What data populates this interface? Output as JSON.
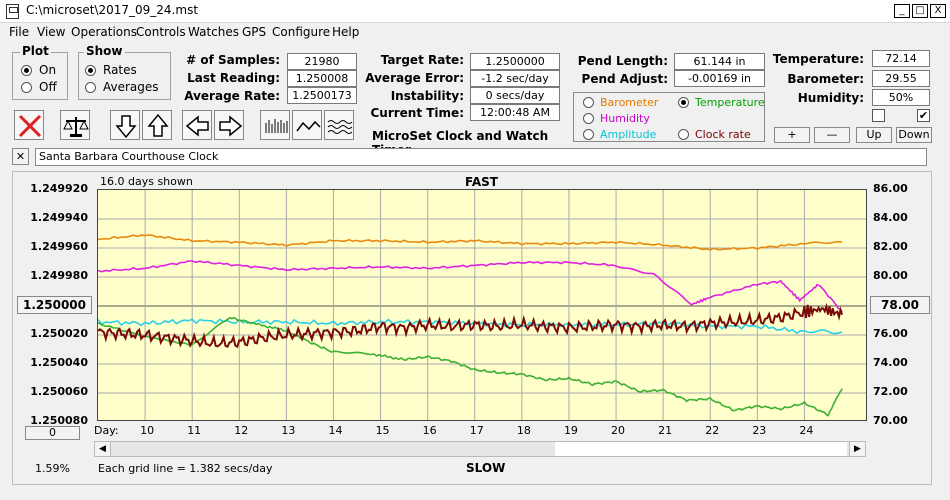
{
  "window": {
    "title": "C:\\microset\\2017_09_24.mst",
    "min": "_",
    "max": "□",
    "close": "X"
  },
  "menu": [
    "File",
    "View",
    "Operations",
    "Controls",
    "Watches",
    "GPS",
    "Configure",
    "Help"
  ],
  "plot_group": {
    "title": "Plot",
    "on": "On",
    "off": "Off",
    "selected": "On"
  },
  "show_group": {
    "title": "Show",
    "rates": "Rates",
    "averages": "Averages",
    "selected": "Rates"
  },
  "stats": {
    "samples_label": "# of Samples:",
    "samples": "21980",
    "last_label": "Last Reading:",
    "last": "1.250008",
    "avg_label": "Average Rate:",
    "avg": "1.2500173",
    "target_label": "Target Rate:",
    "target": "1.2500000",
    "error_label": "Average Error:",
    "error": "-1.2 sec/day",
    "instab_label": "Instability:",
    "instab": "0 secs/day",
    "time_label": "Current Time:",
    "time": "12:00:48 AM",
    "pendlen_label": "Pend Length:",
    "pendlen": "61.144 in",
    "pendadj_label": "Pend Adjust:",
    "pendadj": "-0.00169 in",
    "temp_label": "Temperature:",
    "temp": "72.14",
    "baro_label": "Barometer:",
    "baro": "29.55",
    "hum_label": "Humidity:",
    "hum": "50%"
  },
  "app_caption": "MicroSet Clock and Watch Timer",
  "sensor_options": [
    {
      "label": "Barometer",
      "color": "#e07b00",
      "selected": false
    },
    {
      "label": "Temperature",
      "color": "#00a000",
      "selected": true
    },
    {
      "label": "Humidity",
      "color": "#cc00cc",
      "selected": false
    },
    {
      "label": "Amplitude",
      "color": "#00c8d8",
      "selected": false
    },
    {
      "label": "Clock rate",
      "color": "#7a0000",
      "selected": false
    }
  ],
  "scale_buttons": {
    "plus": "+",
    "minus": "—",
    "up": "Up",
    "down": "Down"
  },
  "checkboxes": {
    "a": "",
    "b": "✔"
  },
  "clock_name": "Santa Barbara Courthouse Clock",
  "clear_name": "✕",
  "chart": {
    "days_shown": "16.0 days shown",
    "fast": "FAST",
    "slow": "SLOW",
    "day_label": "Day:",
    "grid_note": "Each grid line = 1.382 secs/day",
    "zoom": "1.59%",
    "left_button": "1.250000",
    "right_button": "78.00",
    "bottom_left_button": "0"
  },
  "chart_data": {
    "type": "line",
    "y_left_ticks": [
      "1.249920",
      "1.249940",
      "1.249960",
      "1.249980",
      "1.250000",
      "1.250020",
      "1.250040",
      "1.250060",
      "1.250080"
    ],
    "y_right_ticks": [
      "86.00",
      "84.00",
      "82.00",
      "80.00",
      "78.00",
      "76.00",
      "74.00",
      "72.00",
      "70.00"
    ],
    "x_ticks": [
      "10",
      "11",
      "12",
      "13",
      "14",
      "15",
      "16",
      "17",
      "18",
      "19",
      "20",
      "21",
      "22",
      "23",
      "24"
    ],
    "series": [
      {
        "name": "Barometer",
        "color": "#e88a10",
        "x": [
          9,
          10,
          11,
          12,
          13,
          14,
          15,
          16,
          17,
          18,
          19,
          20,
          21,
          22,
          23,
          24,
          24.8
        ],
        "y": [
          82.6,
          82.9,
          82.5,
          82.4,
          82.2,
          82.5,
          82.5,
          82.4,
          82.5,
          82.3,
          82.3,
          82.4,
          82.2,
          81.9,
          82.0,
          82.3,
          82.4
        ]
      },
      {
        "name": "Humidity",
        "color": "#e020e0",
        "x": [
          9,
          10,
          11,
          12,
          13,
          14,
          15,
          16,
          17,
          18,
          19,
          20,
          20.8,
          21.6,
          22,
          23,
          23.5,
          23.9,
          24.3,
          24.8
        ],
        "y": [
          80.4,
          80.6,
          81.1,
          80.8,
          80.5,
          80.6,
          80.7,
          80.6,
          80.8,
          81.0,
          81.0,
          80.8,
          80.2,
          78.1,
          78.6,
          79.5,
          79.7,
          78.4,
          79.5,
          77.6
        ]
      },
      {
        "name": "Amplitude",
        "color": "#28d0e8",
        "x": [
          9,
          10,
          11,
          12,
          13,
          14,
          15,
          16,
          17,
          18,
          19,
          20,
          21,
          22,
          23,
          24,
          24.8
        ],
        "y": [
          76.9,
          76.8,
          77.0,
          76.9,
          76.9,
          76.8,
          76.9,
          76.9,
          76.8,
          76.7,
          76.7,
          76.7,
          76.8,
          76.6,
          76.6,
          76.2,
          76.2
        ]
      },
      {
        "name": "Temperature",
        "color": "#3cb034",
        "x": [
          9,
          10,
          11,
          11.8,
          12.3,
          13,
          13.5,
          14,
          14.8,
          15.5,
          16,
          16.5,
          17,
          17.5,
          18,
          18.5,
          19,
          19.5,
          20,
          20.5,
          21,
          21.5,
          22,
          22.5,
          23,
          23.5,
          24,
          24.5,
          24.8
        ],
        "y": [
          76.8,
          75.9,
          75.3,
          77.2,
          76.8,
          76.3,
          75.5,
          74.8,
          74.7,
          74.3,
          74.5,
          74.2,
          73.6,
          73.4,
          73.3,
          72.9,
          73.0,
          72.6,
          72.8,
          72.1,
          72.2,
          71.5,
          71.6,
          70.8,
          71.1,
          70.9,
          71.3,
          70.5,
          72.3
        ]
      },
      {
        "name": "Clock rate",
        "color": "#7a0a0a",
        "x": [
          9,
          9.5,
          10,
          10.5,
          11,
          11.5,
          12,
          12.5,
          13,
          13.5,
          14,
          14.5,
          15,
          15.5,
          16,
          16.5,
          17,
          17.5,
          18,
          18.5,
          19,
          19.5,
          20,
          20.5,
          21,
          21.5,
          22,
          22.5,
          23,
          23.5,
          24,
          24.4,
          24.8
        ],
        "y": [
          76.2,
          76.1,
          76.0,
          75.8,
          75.6,
          75.4,
          75.5,
          75.8,
          76.0,
          76.1,
          76.2,
          76.3,
          76.6,
          76.5,
          76.7,
          76.6,
          76.7,
          76.6,
          76.7,
          76.6,
          76.5,
          76.6,
          76.7,
          76.6,
          76.7,
          76.6,
          76.8,
          76.9,
          77.0,
          77.2,
          77.6,
          77.8,
          77.4
        ]
      }
    ]
  }
}
